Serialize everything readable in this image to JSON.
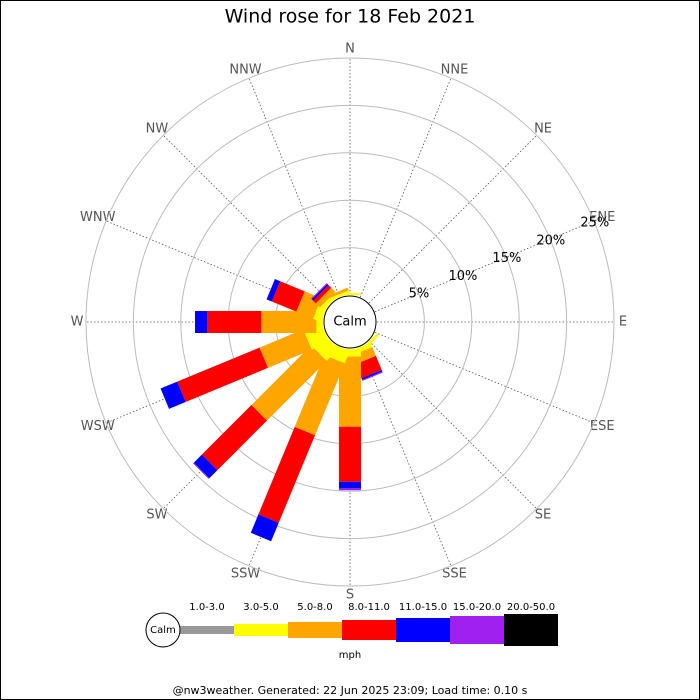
{
  "chart_data": {
    "type": "windrose",
    "title": "Wind rose for 18 Feb 2021",
    "categories": [
      "N",
      "NNE",
      "NE",
      "ENE",
      "E",
      "ESE",
      "SE",
      "SSE",
      "S",
      "SSW",
      "SW",
      "WSW",
      "W",
      "WNW",
      "NW",
      "NNW"
    ],
    "calm_label": "Calm",
    "series": [
      {
        "name": "1.0-3.0",
        "color": "#999999",
        "values": [
          0,
          0,
          0,
          0,
          0,
          0,
          0,
          0,
          0,
          0,
          0,
          0,
          0,
          0,
          0,
          0
        ]
      },
      {
        "name": "3.0-5.0",
        "color": "#ffff00",
        "values": [
          0.2,
          0,
          0,
          0,
          0,
          0,
          0.3,
          0.5,
          0.8,
          1.4,
          1.8,
          2.0,
          0.7,
          0.9,
          0.5,
          0.3
        ]
      },
      {
        "name": "5.0-8.0",
        "color": "#ffa500",
        "values": [
          0,
          0,
          0,
          0,
          0,
          0,
          0,
          1.0,
          7.4,
          8.2,
          8.9,
          5.0,
          5.8,
          1.9,
          0.6,
          0.3
        ]
      },
      {
        "name": "8.0-11.0",
        "color": "#ff0000",
        "values": [
          0,
          0,
          0,
          0,
          0,
          0,
          0,
          1.6,
          5.8,
          10.0,
          7.4,
          9.4,
          5.7,
          2.8,
          0.4,
          0
        ]
      },
      {
        "name": "11.0-15.0",
        "color": "#0000ff",
        "values": [
          0,
          0,
          0,
          0,
          0,
          0,
          0,
          0.2,
          0.7,
          2.1,
          1.2,
          1.9,
          1.3,
          0.6,
          0.2,
          0
        ]
      },
      {
        "name": "15.0-20.0",
        "color": "#a020f0",
        "values": [
          0,
          0,
          0,
          0,
          0,
          0,
          0,
          0.1,
          0.2,
          0,
          0.1,
          0,
          0,
          0,
          0.1,
          0
        ]
      },
      {
        "name": "20.0-50.0",
        "color": "#000000",
        "values": [
          0,
          0,
          0,
          0,
          0,
          0,
          0,
          0,
          0,
          0,
          0,
          0,
          0,
          0,
          0,
          0
        ]
      }
    ],
    "ylim": [
      0,
      25
    ],
    "yticks": [
      {
        "value": 5,
        "label": "5%"
      },
      {
        "value": 10,
        "label": "10%"
      },
      {
        "value": 15,
        "label": "15%"
      },
      {
        "value": 20,
        "label": "20%"
      },
      {
        "value": 25,
        "label": "25%"
      }
    ],
    "unit_label": "mph",
    "footer": "@nw3weather. Generated: 22 Jun 2025 23:09; Load time: 0.10 s"
  }
}
